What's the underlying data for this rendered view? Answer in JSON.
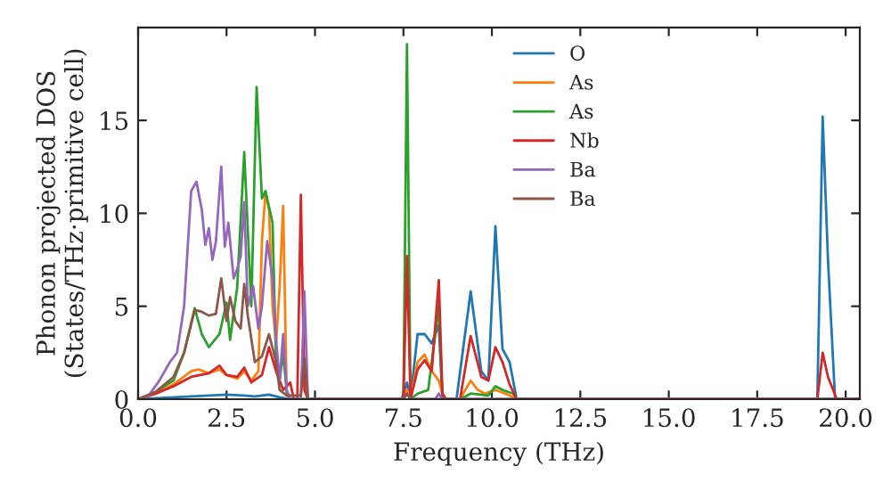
{
  "chart_data": {
    "type": "line",
    "xlabel": "Frequency (THz)",
    "ylabel": "Phonon projected DOS\n(States/THz·primitive cell)",
    "xlim": [
      0,
      20.4
    ],
    "ylim": [
      0,
      20
    ],
    "xticks": [
      {
        "value": 0,
        "label": "0.0"
      },
      {
        "value": 2.5,
        "label": "2.5"
      },
      {
        "value": 5,
        "label": "5.0"
      },
      {
        "value": 7.5,
        "label": "7.5"
      },
      {
        "value": 10,
        "label": "10.0"
      },
      {
        "value": 12.5,
        "label": "12.5"
      },
      {
        "value": 15,
        "label": "15.0"
      },
      {
        "value": 17.5,
        "label": "17.5"
      },
      {
        "value": 20,
        "label": "20.0"
      }
    ],
    "yticks": [
      0,
      5,
      10,
      15
    ],
    "grid": false,
    "legend": "top",
    "marker": "none",
    "line_style": "solid",
    "series": [
      {
        "name": "O",
        "color": "#1f77b4",
        "x": [
          0,
          0.5,
          1,
          2,
          2.5,
          3,
          3.3,
          3.7,
          4.0,
          4.3,
          7.45,
          7.6,
          7.7,
          7.9,
          8.1,
          8.3,
          8.5,
          8.6,
          9.0,
          9.4,
          9.7,
          9.9,
          10.1,
          10.3,
          10.5,
          10.7,
          19.2,
          19.35,
          19.5,
          19.7,
          20.4
        ],
        "values": [
          0,
          0.05,
          0.1,
          0.2,
          0.25,
          0.2,
          0.15,
          0.25,
          0.1,
          0,
          0,
          0.9,
          0,
          3.5,
          3.5,
          3.0,
          4.0,
          0,
          0,
          5.8,
          1.5,
          1.0,
          9.3,
          2.7,
          2.0,
          0,
          0,
          15.2,
          7.5,
          0,
          0
        ]
      },
      {
        "name": "As",
        "color": "#ff7f0e",
        "x": [
          0,
          0.5,
          1,
          1.5,
          1.7,
          2.0,
          2.3,
          2.5,
          2.8,
          3.0,
          3.2,
          3.4,
          3.5,
          3.6,
          3.7,
          3.8,
          3.9,
          4.0,
          4.1,
          4.2,
          4.3,
          7.5,
          7.6,
          7.7,
          7.9,
          8.1,
          8.3,
          8.5,
          8.6,
          8.7,
          9.1,
          9.4,
          9.6,
          9.8,
          10.1,
          10.5,
          10.7,
          20.4
        ],
        "values": [
          0,
          0.3,
          0.8,
          1.5,
          1.6,
          1.4,
          1.6,
          1.3,
          1.1,
          1.5,
          1.0,
          1.5,
          8.5,
          11.1,
          10.2,
          5,
          3,
          6,
          10.4,
          0.3,
          0,
          0,
          0.5,
          0,
          2.0,
          2.4,
          1.5,
          1.0,
          0.3,
          0,
          0,
          1.0,
          0.5,
          0.3,
          0.5,
          0.2,
          0,
          0
        ]
      },
      {
        "name": "As",
        "color": "#2ca02c",
        "x": [
          0,
          0.5,
          1,
          1.3,
          1.6,
          1.8,
          2.0,
          2.3,
          2.5,
          2.6,
          2.8,
          3.0,
          3.2,
          3.35,
          3.5,
          3.6,
          3.8,
          3.9,
          4.0,
          4.1,
          4.2,
          4.3,
          7.5,
          7.6,
          7.7,
          7.9,
          8.2,
          8.5,
          8.6,
          8.7,
          9.1,
          9.4,
          9.9,
          10.1,
          10.3,
          10.6,
          10.7,
          20.4
        ],
        "values": [
          0,
          0.4,
          1.0,
          2.5,
          4.9,
          3.5,
          2.8,
          3.5,
          5.2,
          3.2,
          6,
          13.3,
          5,
          16.8,
          10.8,
          11.2,
          9.5,
          2.0,
          1.0,
          2.5,
          0.4,
          0,
          0,
          19.1,
          0,
          0.3,
          0.5,
          5.0,
          0.3,
          0,
          0,
          0.3,
          0.2,
          0.7,
          0.5,
          0.3,
          0,
          0
        ]
      },
      {
        "name": "Nb",
        "color": "#d62728",
        "x": [
          0,
          0.5,
          1,
          1.5,
          2.0,
          2.3,
          2.5,
          2.8,
          3.0,
          3.2,
          3.5,
          3.7,
          3.9,
          4.1,
          4.3,
          4.4,
          4.5,
          4.6,
          4.7,
          4.8,
          7.5,
          7.6,
          7.7,
          7.9,
          8.1,
          8.3,
          8.5,
          8.6,
          8.7,
          9.1,
          9.4,
          9.7,
          9.9,
          10.1,
          10.3,
          10.5,
          10.7,
          19.2,
          19.35,
          19.5,
          19.75,
          20.4
        ],
        "values": [
          0,
          0.3,
          0.7,
          1.2,
          1.4,
          1.8,
          1.3,
          1.2,
          1.7,
          0.9,
          1.3,
          2.8,
          1.5,
          0.5,
          0.9,
          0,
          0,
          11.0,
          0.5,
          0,
          0,
          7.7,
          0,
          1.6,
          2.1,
          1.5,
          6.4,
          0.3,
          0,
          0,
          3.4,
          1.2,
          1.0,
          2.8,
          2.0,
          0.8,
          0,
          0,
          2.5,
          1.2,
          0,
          0
        ]
      },
      {
        "name": "Ba",
        "color": "#9467bd",
        "x": [
          0,
          0.3,
          0.6,
          0.9,
          1.1,
          1.3,
          1.5,
          1.65,
          1.8,
          1.9,
          2.0,
          2.1,
          2.2,
          2.35,
          2.45,
          2.55,
          2.7,
          2.8,
          2.9,
          3.0,
          3.1,
          3.25,
          3.4,
          3.5,
          3.65,
          3.8,
          3.9,
          4.0,
          4.1,
          4.2,
          4.3,
          4.6,
          4.7,
          4.8,
          7.5,
          7.6,
          7.7,
          8.4,
          8.5,
          8.6,
          20.4
        ],
        "values": [
          0,
          0.2,
          1.0,
          2.0,
          2.5,
          5,
          11.2,
          11.7,
          10.2,
          8.3,
          9.2,
          7.5,
          8.5,
          12.5,
          8.2,
          9.5,
          6.5,
          7.0,
          7.7,
          10.6,
          5,
          6.1,
          3.8,
          5,
          8.5,
          6.5,
          3.2,
          1.0,
          3.5,
          0.5,
          0,
          0,
          5.8,
          0,
          0,
          0.3,
          0,
          0,
          0.3,
          0,
          0
        ]
      },
      {
        "name": "Ba",
        "color": "#8c564b",
        "x": [
          0,
          0.5,
          1,
          1.3,
          1.6,
          1.8,
          2.0,
          2.2,
          2.35,
          2.5,
          2.6,
          2.75,
          2.9,
          3.0,
          3.1,
          3.3,
          3.5,
          3.7,
          3.9,
          4.0,
          4.2,
          4.6,
          4.7,
          4.8,
          7.5,
          7.6,
          7.7,
          20.4
        ],
        "values": [
          0,
          0.4,
          1.2,
          2.5,
          4.8,
          4.7,
          4.5,
          4.6,
          6.5,
          4.2,
          5.5,
          4.2,
          3.8,
          6.2,
          4.5,
          2.0,
          2.3,
          3.5,
          2.0,
          0.5,
          0.2,
          0.2,
          2.2,
          0,
          0,
          0.3,
          0,
          0
        ]
      }
    ]
  }
}
